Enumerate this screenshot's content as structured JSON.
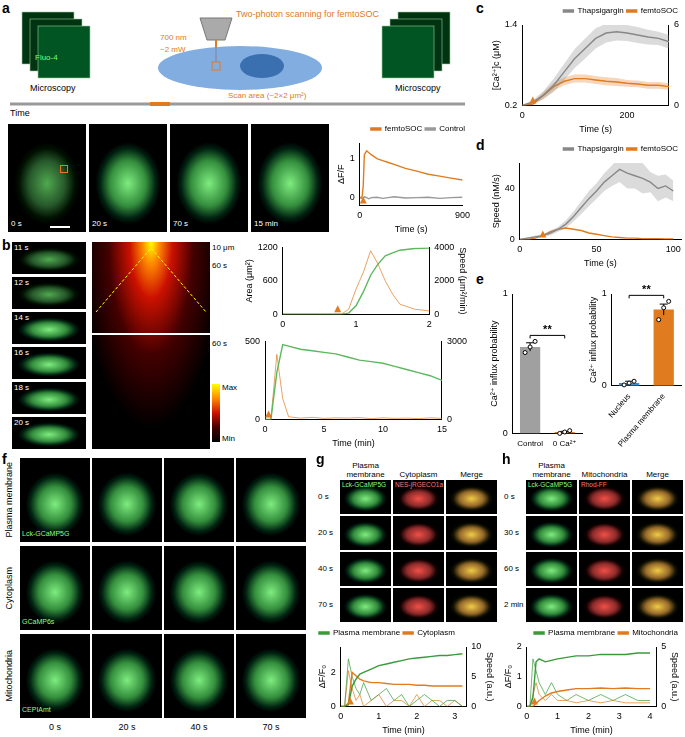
{
  "figure": {
    "panel_labels": [
      "a",
      "b",
      "c",
      "d",
      "e",
      "f",
      "g",
      "h"
    ],
    "a": {
      "schematic_title": "Two-photon scanning for femtoSOC",
      "wavelength": "700 nm",
      "power": "~2 mW",
      "scan_area": "Scan area (~2×2 μm²)",
      "dye": "Fluo-4",
      "microscopy": "Microscopy",
      "time": "Time",
      "image_times": [
        "0 s",
        "20 s",
        "70 s",
        "15 min"
      ]
    },
    "b": {
      "image_times": [
        "11 s",
        "12 s",
        "14 s",
        "16 s",
        "18 s",
        "20 s"
      ],
      "kymo_labels": [
        "10 μm",
        "60 s",
        "60 s"
      ],
      "colorbar": [
        "Max",
        "Min"
      ]
    },
    "f": {
      "rows": [
        {
          "label": "Plasma membrane",
          "sensor": "Lck-GCaMP5G"
        },
        {
          "label": "Cytoplasm",
          "sensor": "GCaMP6s"
        },
        {
          "label": "Mitochondria",
          "sensor": "CEPIAmt"
        }
      ],
      "times": [
        "0 s",
        "20 s",
        "40 s",
        "70 s"
      ]
    },
    "g": {
      "columns": [
        "Plasma membrane",
        "Cytoplasm",
        "Merge"
      ],
      "sensors": [
        "Lck-GCaMP5G",
        "NES-jRGECO1a"
      ],
      "times": [
        "0 s",
        "20 s",
        "40 s",
        "70 s"
      ]
    },
    "h": {
      "columns": [
        "Plasma membrane",
        "Mitochondria",
        "Merge"
      ],
      "sensors": [
        "Lck-GCaMP5G",
        "Rhod-FF"
      ],
      "times": [
        "0 s",
        "30 s",
        "60 s",
        "2 min"
      ]
    }
  },
  "chart_data": [
    {
      "type": "line",
      "x_label": "Time (s)",
      "y_label": "ΔF/F",
      "x": [
        0,
        20,
        30,
        40,
        60,
        80,
        100,
        150,
        200,
        250,
        300,
        400,
        500,
        600,
        700,
        800,
        900
      ],
      "series": [
        {
          "name": "femtoSOC",
          "color": "#e07b20",
          "values": [
            0,
            0.02,
            0.3,
            1.1,
            1.2,
            1.15,
            1.1,
            1.0,
            0.95,
            0.9,
            0.85,
            0.75,
            0.68,
            0.6,
            0.55,
            0.5,
            0.45
          ]
        },
        {
          "name": "Control",
          "color": "#999999",
          "values": [
            0,
            -0.02,
            0,
            0.02,
            0,
            -0.03,
            0,
            0.01,
            -0.02,
            0,
            0.02,
            -0.01,
            0,
            0.01,
            -0.02,
            0,
            0.01
          ]
        }
      ],
      "xlim": [
        0,
        900
      ],
      "xticks": [
        0,
        900
      ],
      "ylim": [
        -0.2,
        1.4
      ],
      "yticks": [
        0,
        1
      ],
      "stimulus": 30,
      "legend": "upper right",
      "grid": false
    },
    {
      "type": "line",
      "y_label": "Area (μm²)",
      "y2_label": "Speed (μm²/min)",
      "x": [
        0,
        0.2,
        0.4,
        0.6,
        0.8,
        0.9,
        1.0,
        1.1,
        1.2,
        1.3,
        1.4,
        1.5,
        1.6,
        1.8,
        2.0
      ],
      "series": [
        {
          "color": "#5cb85c",
          "values": [
            0,
            0,
            0,
            0,
            0,
            20,
            150,
            400,
            700,
            900,
            1050,
            1100,
            1150,
            1180,
            1190
          ]
        },
        {
          "color": "#e07b20",
          "axis": "y2",
          "values": [
            0,
            0,
            0,
            0,
            0,
            300,
            1500,
            2500,
            3800,
            3000,
            2000,
            1200,
            600,
            300,
            200
          ]
        }
      ],
      "xlim": [
        0,
        2
      ],
      "xticks": [
        0,
        1,
        2
      ],
      "ylim": [
        0,
        1200
      ],
      "yticks": [
        0,
        600,
        1200
      ],
      "y2lim": [
        0,
        4000
      ],
      "y2ticks": [
        0,
        2000,
        4000
      ],
      "stimulus": 0.75,
      "grid": false
    },
    {
      "type": "line",
      "x_label": "Time (min)",
      "x": [
        0,
        0.5,
        1,
        1.5,
        2,
        3,
        4,
        5,
        6,
        7,
        8,
        9,
        10,
        11,
        12,
        13,
        14,
        15
      ],
      "series": [
        {
          "color": "#5cb85c",
          "values": [
            0,
            0,
            300,
            480,
            470,
            450,
            440,
            430,
            420,
            400,
            380,
            370,
            360,
            340,
            320,
            300,
            280,
            250
          ]
        },
        {
          "color": "#e07b20",
          "axis": "y2",
          "values": [
            0,
            0,
            2500,
            800,
            100,
            50,
            80,
            40,
            60,
            50,
            70,
            30,
            60,
            40,
            50,
            30,
            60,
            40
          ]
        }
      ],
      "xlim": [
        0,
        15
      ],
      "xticks": [
        0,
        5,
        10,
        15
      ],
      "ylim": [
        0,
        500
      ],
      "yticks": [
        0,
        500
      ],
      "y2lim": [
        0,
        3000
      ],
      "y2ticks": [
        0,
        3000
      ],
      "stimulus": 0.3,
      "grid": false
    },
    {
      "type": "line",
      "x_label": "Time (s)",
      "y_label": "[Ca²⁺]c (μM)",
      "x": [
        0,
        20,
        40,
        60,
        80,
        100,
        120,
        140,
        160,
        180,
        200,
        220,
        240,
        260,
        280
      ],
      "series": [
        {
          "name": "Thapsigargin",
          "color": "#888888",
          "values": [
            0.2,
            0.25,
            0.35,
            0.5,
            0.7,
            0.9,
            1.05,
            1.2,
            1.28,
            1.3,
            1.28,
            1.25,
            1.22,
            1.2,
            1.15
          ],
          "errors": [
            0.01,
            0.03,
            0.06,
            0.1,
            0.12,
            0.14,
            0.15,
            0.15,
            0.14,
            0.13,
            0.12,
            0.12,
            0.11,
            0.1,
            0.1
          ]
        },
        {
          "name": "femtoSOC",
          "color": "#e07b20",
          "values": [
            0.2,
            0.22,
            0.35,
            0.48,
            0.56,
            0.6,
            0.6,
            0.58,
            0.56,
            0.55,
            0.53,
            0.52,
            0.5,
            0.5,
            0.48
          ],
          "errors": [
            0.01,
            0.02,
            0.05,
            0.06,
            0.06,
            0.06,
            0.06,
            0.06,
            0.06,
            0.06,
            0.05,
            0.05,
            0.05,
            0.05,
            0.05
          ]
        }
      ],
      "xlim": [
        0,
        280
      ],
      "xticks": [
        0,
        200
      ],
      "ylim": [
        0.2,
        1.4
      ],
      "yticks": [
        0.2,
        1.4
      ],
      "y2lim": [
        0,
        6
      ],
      "y2ticks": [
        0,
        6
      ],
      "stimulus": 20,
      "legend": "upper right",
      "grid": false
    },
    {
      "type": "line",
      "x_label": "Time (s)",
      "y_label": "Speed (nM/s)",
      "x": [
        0,
        5,
        10,
        15,
        20,
        25,
        30,
        35,
        40,
        45,
        50,
        55,
        60,
        65,
        70,
        75,
        80,
        85,
        90,
        95,
        100
      ],
      "series": [
        {
          "name": "Thapsigargin",
          "color": "#888888",
          "values": [
            0,
            1,
            2,
            3,
            5,
            8,
            12,
            18,
            25,
            32,
            38,
            45,
            50,
            55,
            52,
            50,
            48,
            45,
            40,
            42,
            38
          ],
          "errors": [
            0,
            0.5,
            1,
            1,
            2,
            2,
            3,
            4,
            5,
            6,
            6,
            7,
            8,
            10,
            12,
            10,
            12,
            8,
            10,
            9,
            8
          ]
        },
        {
          "name": "femtoSOC",
          "color": "#e07b20",
          "values": [
            0,
            0,
            1,
            3,
            6,
            8,
            9,
            8,
            7,
            5,
            4,
            3,
            2,
            1.5,
            1,
            1,
            0.5,
            0.5,
            0.5,
            0.3,
            0.3
          ]
        }
      ],
      "xlim": [
        0,
        105
      ],
      "xticks": [
        0,
        50,
        100
      ],
      "ylim": [
        0,
        60
      ],
      "yticks": [
        0,
        40
      ],
      "stimulus": 15,
      "legend": "upper right",
      "grid": false
    },
    {
      "type": "bar",
      "y_label": "Ca²⁺ influx probability",
      "categories": [
        "Control",
        "0 Ca²⁺"
      ],
      "values": [
        0.62,
        0.01
      ],
      "errors": [
        0.03,
        0.005
      ],
      "points": [
        [
          0.58,
          0.62,
          0.66
        ],
        [
          0,
          0.01,
          0.02
        ]
      ],
      "colors": [
        "#a0a0a0",
        "#e07b20"
      ],
      "ylim": [
        0,
        1
      ],
      "yticks": [
        0,
        1
      ],
      "annotation": "**",
      "grid": false
    },
    {
      "type": "bar",
      "y_label": "Ca²⁺ influx probability",
      "categories": [
        "Nucleus",
        "Plasma membrane"
      ],
      "values": [
        0.03,
        0.83
      ],
      "errors": [
        0.02,
        0.06
      ],
      "points": [
        [
          0.01,
          0.03,
          0.05
        ],
        [
          0.72,
          0.85,
          0.92
        ]
      ],
      "colors": [
        "#3b8fd0",
        "#e07b20"
      ],
      "ylim": [
        0,
        1
      ],
      "yticks": [
        0,
        1
      ],
      "annotation": "**",
      "grid": false
    },
    {
      "type": "line",
      "x_label": "Time (min)",
      "y_label": "ΔF/F₀",
      "y2_label": "Speed (a.u.)",
      "x": [
        0,
        0.1,
        0.2,
        0.3,
        0.4,
        0.5,
        0.6,
        0.8,
        1.0,
        1.2,
        1.4,
        1.6,
        1.8,
        2.0,
        2.2,
        2.4,
        2.6,
        2.8,
        3.0,
        3.2
      ],
      "series": [
        {
          "name": "Plasma membrane",
          "color": "#3a9a3a",
          "values": [
            0,
            0,
            0.1,
            1.2,
            1.6,
            1.9,
            2.0,
            2.2,
            2.4,
            2.5,
            2.6,
            2.7,
            2.8,
            2.85,
            2.9,
            2.95,
            3.0,
            3.0,
            3.05,
            3.1
          ]
        },
        {
          "name": "Cytoplasm",
          "color": "#e07b20",
          "values": [
            0,
            0,
            0.2,
            2.0,
            1.8,
            1.6,
            1.5,
            1.4,
            1.4,
            1.35,
            1.3,
            1.3,
            1.3,
            1.25,
            1.25,
            1.2,
            1.2,
            1.2,
            1.2,
            1.2
          ]
        },
        {
          "color": "#3a9a3a",
          "axis": "y2",
          "values": [
            0,
            0,
            8,
            5,
            3,
            2,
            4,
            1,
            2,
            3,
            1,
            2,
            0,
            1,
            2,
            1,
            0,
            1,
            1,
            0
          ]
        },
        {
          "color": "#e07b20",
          "axis": "y2",
          "values": [
            0,
            0,
            6,
            3,
            1,
            2,
            0,
            1,
            2,
            0,
            1,
            1,
            0,
            2,
            0,
            1,
            1,
            0,
            1,
            0
          ]
        }
      ],
      "xlim": [
        0,
        3.3
      ],
      "xticks": [
        0,
        1,
        2,
        3
      ],
      "ylim": [
        0,
        3.5
      ],
      "yticks": [
        0,
        2
      ],
      "y2lim": [
        0,
        10
      ],
      "y2ticks": [
        0,
        5,
        10
      ],
      "stimulus": 0.25,
      "legend": "upper left",
      "grid": false
    },
    {
      "type": "line",
      "x_label": "Time (min)",
      "y_label": "ΔF/F₀",
      "y2_label": "Speed (a.u.)",
      "x": [
        0,
        0.1,
        0.2,
        0.3,
        0.4,
        0.6,
        0.8,
        1.0,
        1.3,
        1.6,
        2.0,
        2.4,
        2.8,
        3.2,
        3.6,
        4.0
      ],
      "series": [
        {
          "name": "Plasma membrane",
          "color": "#3a9a3a",
          "values": [
            0,
            0,
            0.3,
            1.5,
            1.6,
            1.5,
            1.55,
            1.6,
            1.65,
            1.7,
            1.7,
            1.75,
            1.75,
            1.75,
            1.8,
            1.8
          ]
        },
        {
          "name": "Mitochondria",
          "color": "#e07b20",
          "values": [
            0,
            0,
            0,
            0.1,
            0.2,
            0.35,
            0.45,
            0.5,
            0.55,
            0.6,
            0.6,
            0.62,
            0.6,
            0.62,
            0.6,
            0.6
          ]
        },
        {
          "color": "#3a9a3a",
          "axis": "y2",
          "values": [
            0,
            0,
            4,
            3,
            2,
            1,
            2,
            1,
            0.5,
            1,
            0.5,
            1,
            0.5,
            1,
            0.5,
            0.5
          ]
        },
        {
          "color": "#e07b20",
          "axis": "y2",
          "values": [
            0,
            0,
            1,
            2,
            1,
            0.5,
            1,
            0.5,
            0.5,
            0.3,
            0.5,
            0.3,
            0.5,
            0.3,
            0.3,
            0.3
          ]
        }
      ],
      "xlim": [
        0,
        4.2
      ],
      "xticks": [
        0,
        1,
        2,
        3,
        4
      ],
      "ylim": [
        0,
        2
      ],
      "yticks": [
        0,
        1,
        2
      ],
      "y2lim": [
        0,
        5
      ],
      "y2ticks": [
        0,
        5
      ],
      "stimulus": 0.25,
      "legend": "upper right",
      "grid": false
    }
  ]
}
